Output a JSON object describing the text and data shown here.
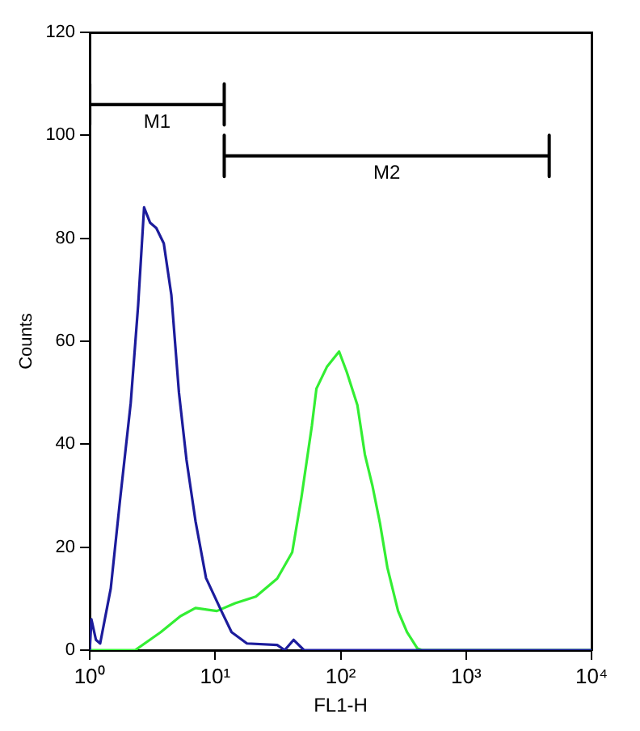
{
  "chart_data": {
    "type": "line",
    "xlabel": "FL1-H",
    "ylabel": "Counts",
    "log": "x",
    "grid": false,
    "legend": false,
    "marker": "none",
    "line_style": "solid",
    "xlim": [
      1,
      10000
    ],
    "xticks": [
      {
        "value": 1,
        "label": "10⁰"
      },
      {
        "value": 10,
        "label": "10¹"
      },
      {
        "value": 100,
        "label": "10²"
      },
      {
        "value": 1000,
        "label": "10³"
      },
      {
        "value": 10000,
        "label": "10⁴"
      }
    ],
    "ylim": [
      0,
      120
    ],
    "yticks": [
      0,
      20,
      40,
      60,
      80,
      100,
      120
    ],
    "series": [
      {
        "color": "#1c1c9c",
        "x": [
          1.0,
          1.03,
          1.12,
          1.21,
          1.47,
          1.74,
          2.12,
          2.43,
          2.71,
          3.03,
          3.39,
          3.89,
          4.47,
          5.14,
          5.9,
          6.97,
          8.45,
          11.2,
          13.5,
          17.9,
          31.2,
          35.8,
          42.2,
          51,
          10000
        ],
        "values": [
          0,
          6,
          2,
          1.3,
          12,
          29,
          48,
          67,
          86,
          83,
          82,
          79,
          69,
          50,
          37,
          25,
          14,
          7.6,
          3.5,
          1.3,
          1,
          0,
          2,
          0,
          0
        ]
      },
      {
        "color": "#33ee33",
        "x": [
          1,
          2.3,
          3.68,
          5.28,
          6.96,
          10.3,
          14.4,
          21.1,
          31.2,
          41.1,
          48.7,
          58.9,
          64.1,
          77.6,
          97.2,
          112,
          136,
          156,
          179,
          206,
          236,
          287,
          338,
          410,
          446,
          10000
        ],
        "values": [
          0,
          0,
          3.5,
          6.6,
          8.2,
          7.6,
          9.1,
          10.4,
          13.9,
          19,
          29.7,
          43.5,
          50.8,
          55,
          58,
          54,
          47.6,
          38,
          32,
          24.6,
          16,
          7.6,
          3.5,
          0.3,
          0,
          0
        ]
      },
      {
        "name": "M1",
        "color": "#000000",
        "x": [
          1,
          1,
          1,
          11.8,
          11.8,
          11.8
        ],
        "values": [
          110,
          102,
          106,
          106,
          110,
          102
        ]
      },
      {
        "name": "M2",
        "color": "#000000",
        "x": [
          11.8,
          11.8,
          11.8,
          4600,
          4600,
          4600
        ],
        "values": [
          100,
          92,
          96,
          96,
          100,
          92
        ]
      }
    ]
  }
}
